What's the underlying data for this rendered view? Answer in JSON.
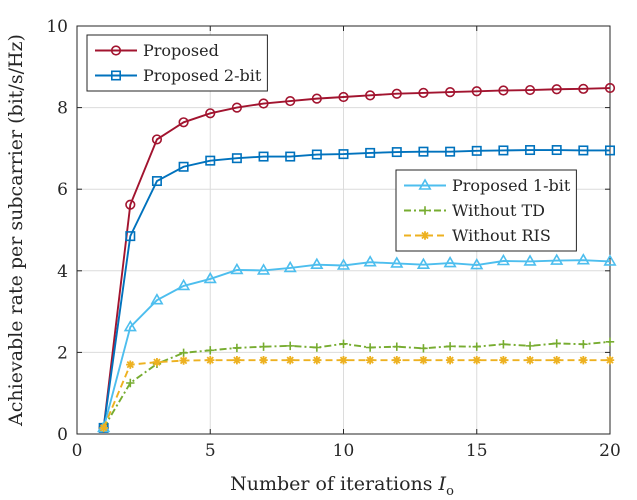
{
  "chart_data": {
    "type": "line",
    "xlabel": "Number of iterations",
    "xlabel_symbol": "I",
    "xlabel_subscript": "o",
    "ylabel": "Achievable rate per subcarrier (bit/s/Hz)",
    "xlim": [
      0,
      20
    ],
    "ylim": [
      0,
      10
    ],
    "xticks": [
      0,
      5,
      10,
      15,
      20
    ],
    "yticks": [
      0,
      2,
      4,
      6,
      8,
      10
    ],
    "grid": true,
    "x": [
      1,
      2,
      3,
      4,
      5,
      6,
      7,
      8,
      9,
      10,
      11,
      12,
      13,
      14,
      15,
      16,
      17,
      18,
      19,
      20
    ],
    "legends": [
      {
        "placement": "top-left",
        "series": [
          0,
          1
        ]
      },
      {
        "placement": "center-right",
        "series": [
          2,
          3,
          4
        ]
      }
    ],
    "series": [
      {
        "name": "Proposed",
        "color": "#a2142f",
        "marker": "circle",
        "dash": "solid",
        "values": [
          0.15,
          5.62,
          7.22,
          7.64,
          7.86,
          8.0,
          8.1,
          8.16,
          8.22,
          8.26,
          8.3,
          8.34,
          8.36,
          8.38,
          8.4,
          8.42,
          8.43,
          8.45,
          8.46,
          8.48
        ]
      },
      {
        "name": "Proposed 2-bit",
        "color": "#0072bd",
        "marker": "square",
        "dash": "solid",
        "values": [
          0.15,
          4.85,
          6.2,
          6.55,
          6.7,
          6.76,
          6.8,
          6.8,
          6.85,
          6.86,
          6.89,
          6.91,
          6.92,
          6.92,
          6.94,
          6.95,
          6.96,
          6.96,
          6.95,
          6.95
        ]
      },
      {
        "name": "Proposed 1-bit",
        "color": "#4dbeee",
        "marker": "triangle",
        "dash": "solid",
        "values": [
          0.15,
          2.62,
          3.28,
          3.63,
          3.8,
          4.02,
          4.01,
          4.07,
          4.15,
          4.13,
          4.21,
          4.18,
          4.15,
          4.19,
          4.14,
          4.24,
          4.23,
          4.25,
          4.26,
          4.23
        ]
      },
      {
        "name": "Without TD",
        "color": "#77ac30",
        "marker": "plus",
        "dash": "dashdot",
        "values": [
          0.15,
          1.25,
          1.72,
          1.99,
          2.05,
          2.11,
          2.14,
          2.16,
          2.12,
          2.21,
          2.12,
          2.14,
          2.1,
          2.15,
          2.14,
          2.2,
          2.16,
          2.22,
          2.2,
          2.26
        ]
      },
      {
        "name": "Without RIS",
        "color": "#edb120",
        "marker": "asterisk",
        "dash": "dashed",
        "values": [
          0.15,
          1.7,
          1.76,
          1.8,
          1.81,
          1.81,
          1.81,
          1.81,
          1.81,
          1.81,
          1.81,
          1.81,
          1.81,
          1.81,
          1.81,
          1.81,
          1.81,
          1.81,
          1.81,
          1.81
        ]
      }
    ]
  }
}
